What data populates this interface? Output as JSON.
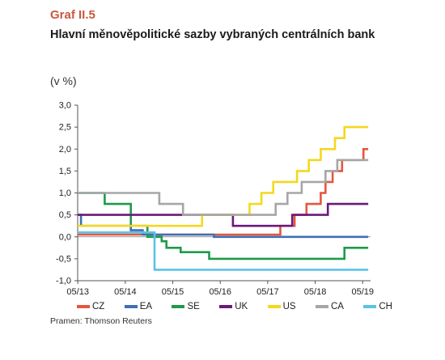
{
  "header": {
    "kicker": "Graf II.5",
    "title": "Hlavní měnověpolitické sazby vybraných centrálních bank",
    "unit": "(v %)"
  },
  "source": "Pramen: Thomson Reuters",
  "chart_data": {
    "type": "line",
    "title": "Hlavní měnověpolitické sazby vybraných centrálních bank",
    "xlabel": "",
    "ylabel": "(v %)",
    "x_ticks": [
      "05/13",
      "05/14",
      "05/15",
      "05/16",
      "05/17",
      "05/18",
      "05/19"
    ],
    "x_domain": [
      2013.33,
      2019.5
    ],
    "ylim": [
      -1.0,
      3.0
    ],
    "y_ticks": [
      "3,0",
      "2,5",
      "2,0",
      "1,5",
      "1,0",
      "0,5",
      "0,0",
      "-0,5",
      "-1,0"
    ],
    "grid": false,
    "legend_position": "bottom",
    "series": [
      {
        "name": "CZ",
        "color": "#e4573e",
        "style": "step",
        "points": [
          [
            2013.33,
            0.05
          ],
          [
            2017.6,
            0.25
          ],
          [
            2017.9,
            0.5
          ],
          [
            2018.15,
            0.75
          ],
          [
            2018.45,
            1.0
          ],
          [
            2018.55,
            1.25
          ],
          [
            2018.7,
            1.5
          ],
          [
            2018.9,
            1.75
          ],
          [
            2019.35,
            2.0
          ],
          [
            2019.45,
            2.0
          ]
        ]
      },
      {
        "name": "EA",
        "color": "#3f6fb5",
        "style": "step",
        "points": [
          [
            2013.33,
            0.5
          ],
          [
            2013.4,
            0.25
          ],
          [
            2014.45,
            0.15
          ],
          [
            2014.7,
            0.05
          ],
          [
            2016.2,
            0.0
          ],
          [
            2019.45,
            0.0
          ]
        ]
      },
      {
        "name": "SE",
        "color": "#1f9a4a",
        "style": "step",
        "points": [
          [
            2013.33,
            1.0
          ],
          [
            2013.9,
            0.75
          ],
          [
            2014.45,
            0.25
          ],
          [
            2014.8,
            0.0
          ],
          [
            2015.1,
            -0.1
          ],
          [
            2015.2,
            -0.25
          ],
          [
            2015.5,
            -0.35
          ],
          [
            2016.1,
            -0.5
          ],
          [
            2018.95,
            -0.25
          ],
          [
            2019.45,
            -0.25
          ]
        ]
      },
      {
        "name": "UK",
        "color": "#6b1a7a",
        "style": "step",
        "points": [
          [
            2013.33,
            0.5
          ],
          [
            2016.6,
            0.25
          ],
          [
            2017.85,
            0.5
          ],
          [
            2018.6,
            0.75
          ],
          [
            2019.45,
            0.75
          ]
        ]
      },
      {
        "name": "US",
        "color": "#f4d81e",
        "style": "step",
        "points": [
          [
            2013.33,
            0.25
          ],
          [
            2015.95,
            0.5
          ],
          [
            2016.95,
            0.75
          ],
          [
            2017.2,
            1.0
          ],
          [
            2017.45,
            1.25
          ],
          [
            2017.95,
            1.5
          ],
          [
            2018.2,
            1.75
          ],
          [
            2018.45,
            2.0
          ],
          [
            2018.75,
            2.25
          ],
          [
            2018.95,
            2.5
          ],
          [
            2019.45,
            2.5
          ]
        ]
      },
      {
        "name": "CA",
        "color": "#a6a6a6",
        "style": "step",
        "points": [
          [
            2013.33,
            1.0
          ],
          [
            2015.05,
            0.75
          ],
          [
            2015.55,
            0.5
          ],
          [
            2017.5,
            0.75
          ],
          [
            2017.75,
            1.0
          ],
          [
            2018.05,
            1.25
          ],
          [
            2018.55,
            1.5
          ],
          [
            2018.8,
            1.75
          ],
          [
            2019.45,
            1.75
          ]
        ]
      },
      {
        "name": "CH",
        "color": "#5bc2e7",
        "style": "step",
        "points": [
          [
            2013.33,
            0.1
          ],
          [
            2014.5,
            0.1
          ],
          [
            2014.95,
            -0.75
          ],
          [
            2019.45,
            -0.75
          ]
        ]
      }
    ]
  }
}
